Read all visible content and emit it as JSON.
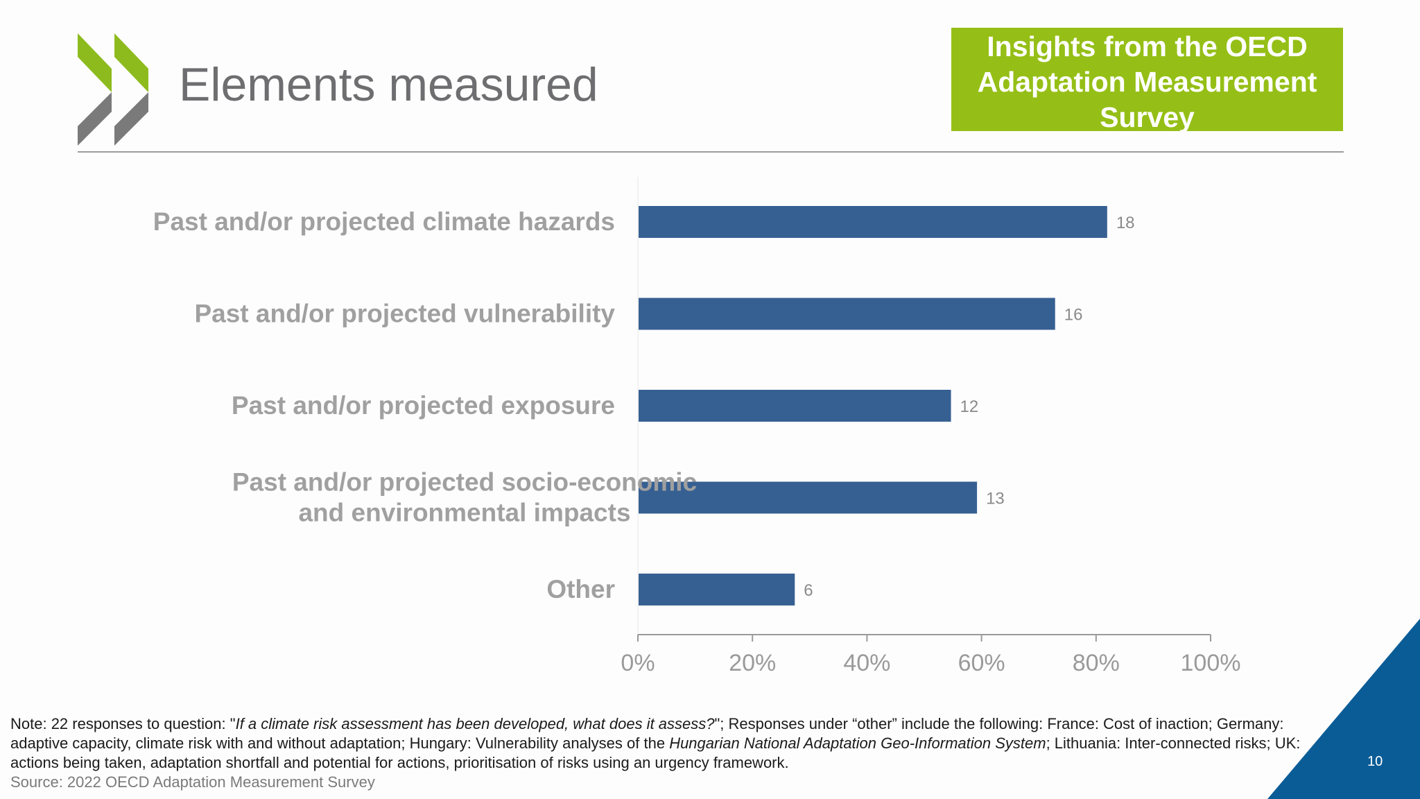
{
  "slide": {
    "title": "Elements measured",
    "banner": [
      "Insights from the OECD",
      "Adaptation Measurement",
      "Survey"
    ],
    "page_number": "10",
    "note": {
      "prefix": "Note: 22 responses to question: \"",
      "question": "If a climate risk assessment has been developed, what does it assess?",
      "middle": "\"; Responses under “other” include the following: France: Cost of inaction; Germany: adaptive capacity, climate risk with and without adaptation; Hungary: Vulnerability analyses of the ",
      "system": "Hungarian National Adaptation Geo-Information System",
      "suffix": "; Lithuania: Inter-connected risks; UK: actions being taken, adaptation shortfall and potential for actions, prioritisation of risks using an urgency framework."
    },
    "source": "Source: 2022 OECD Adaptation Measurement Survey"
  },
  "colors": {
    "bar": "#376092",
    "banner": "#95bf16",
    "logo_green": "#8dbb1e",
    "logo_grey": "#7a7a7a",
    "corner": "#0a5c96"
  },
  "chart_data": {
    "type": "bar",
    "orientation": "horizontal",
    "categories": [
      [
        "Past and/or projected climate hazards"
      ],
      [
        "Past and/or projected vulnerability"
      ],
      [
        "Past and/or projected exposure"
      ],
      [
        "Past and/or projected socio-economic",
        "and environmental impacts"
      ],
      [
        "Other"
      ]
    ],
    "values": [
      18,
      16,
      12,
      13,
      6
    ],
    "total_responses": 22,
    "xticks": [
      "0%",
      "20%",
      "40%",
      "60%",
      "80%",
      "100%"
    ],
    "xlim": [
      0,
      1
    ],
    "grid": false,
    "legend": "none"
  }
}
